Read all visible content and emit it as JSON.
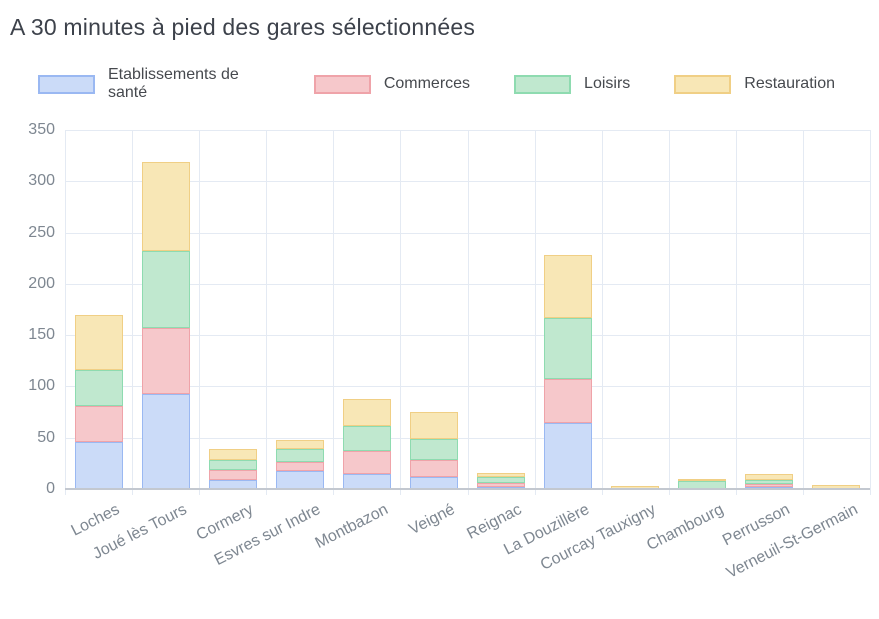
{
  "chart_data": {
    "type": "bar",
    "stacked": true,
    "title": "A 30 minutes à pied des gares sélectionnées",
    "legend_position": "top",
    "grid": true,
    "xlabel": "",
    "ylabel": "",
    "ylim": [
      0,
      350
    ],
    "yticks": [
      0,
      50,
      100,
      150,
      200,
      250,
      300,
      350
    ],
    "categories": [
      "Loches",
      "Joué lès Tours",
      "Cormery",
      "Esvres sur Indre",
      "Montbazon",
      "Veigné",
      "Reignac",
      "La Douzillère",
      "Courcay Tauxigny",
      "Chambourg",
      "Perrusson",
      "Verneuil-St-Germain"
    ],
    "series": [
      {
        "name": "Etablissements de santé",
        "fill": "#cbdbf8",
        "border": "#9ab8f2",
        "values": [
          46,
          93,
          9,
          18,
          15,
          12,
          2,
          64,
          0,
          0,
          1,
          0
        ]
      },
      {
        "name": "Commerces",
        "fill": "#f6c8cb",
        "border": "#efa3a9",
        "values": [
          35,
          64,
          10,
          8,
          22,
          16,
          4,
          43,
          0,
          0,
          3,
          0
        ]
      },
      {
        "name": "Loisirs",
        "fill": "#c0e8cf",
        "border": "#8edbb0",
        "values": [
          35,
          75,
          9,
          13,
          24,
          21,
          6,
          60,
          0,
          8,
          4,
          0
        ]
      },
      {
        "name": "Restauration",
        "fill": "#f8e7b6",
        "border": "#f0cf85",
        "values": [
          54,
          87,
          11,
          9,
          27,
          26,
          4,
          61,
          3,
          2,
          6,
          4
        ]
      }
    ],
    "totals": [
      170,
      319,
      39,
      48,
      88,
      75,
      16,
      228,
      3,
      10,
      14,
      4
    ]
  },
  "colors": {
    "background": "#ffffff",
    "title_text": "#3d424b",
    "tick_label": "#7e8791",
    "gridline": "#e4eaf3",
    "axis_line": "#c3c8d0",
    "legend_label": "#46494e"
  }
}
